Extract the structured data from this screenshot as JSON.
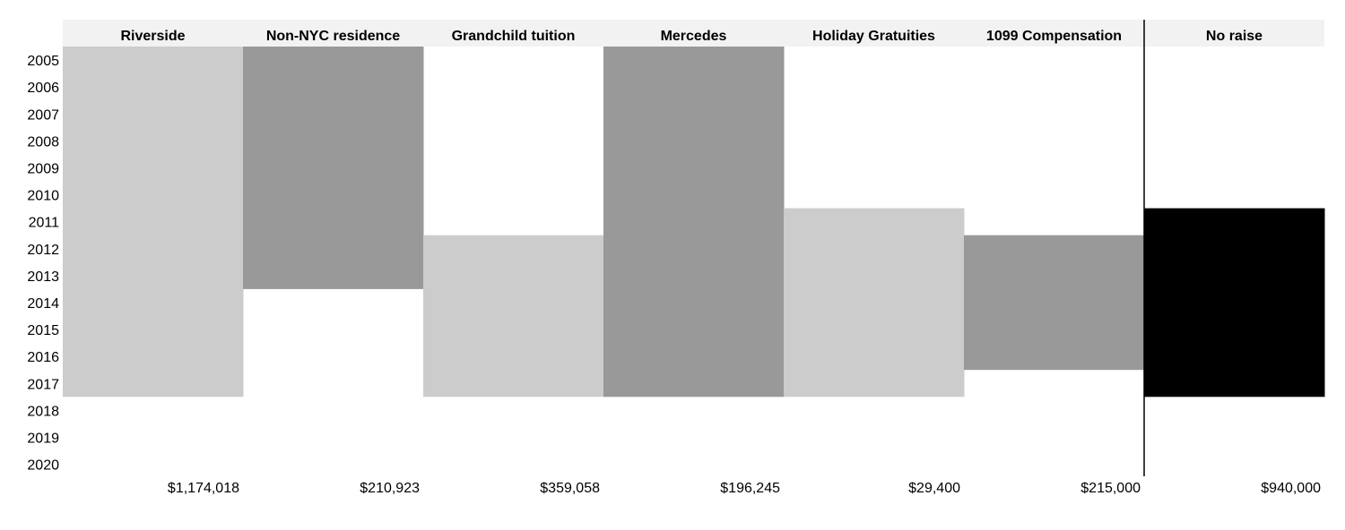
{
  "chart_data": {
    "type": "bar",
    "orientation": "timeline-columns",
    "categories": [
      "Riverside",
      "Non-NYC residence",
      "Grandchild tuition",
      "Mercedes",
      "Holiday Gratuities",
      "1099 Compensation",
      "No raise"
    ],
    "years": [
      "2005",
      "2006",
      "2007",
      "2008",
      "2009",
      "2010",
      "2011",
      "2012",
      "2013",
      "2014",
      "2015",
      "2016",
      "2017",
      "2018",
      "2019",
      "2020"
    ],
    "series": [
      {
        "values": [
          2005,
          2005,
          2012,
          2005,
          2011,
          2012,
          2011
        ],
        "role": "start-year"
      },
      {
        "values": [
          2017,
          2013,
          2017,
          2017,
          2017,
          2016,
          2017
        ],
        "role": "end-year"
      }
    ],
    "totals": [
      "$1,174,018",
      "$210,923",
      "$359,058",
      "$196,245",
      "$29,400",
      "$215,000",
      "$940,000"
    ],
    "colors": [
      "#cccccc",
      "#999999",
      "#cccccc",
      "#999999",
      "#cccccc",
      "#999999",
      "#000000"
    ],
    "header_background": "#f2f2f2",
    "separator_before_category": "No raise",
    "title": "",
    "xlabel": "",
    "ylabel": ""
  }
}
